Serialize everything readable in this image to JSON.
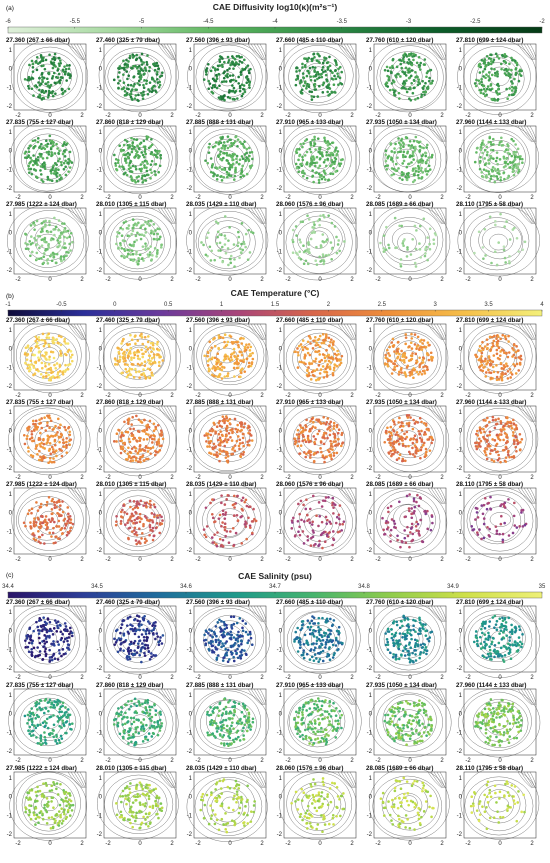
{
  "colors": {
    "diffusivity": [
      "#dff0da",
      "#a6d9a0",
      "#5cb55e",
      "#2e8b46",
      "#0d5e2a",
      "#063a16"
    ],
    "temperature": [
      "#0f0c3a",
      "#2b2f9a",
      "#6a3a9c",
      "#a8447a",
      "#d8664a",
      "#ef8f3a",
      "#f6c04a",
      "#f4f07a"
    ],
    "salinity": [
      "#2a1468",
      "#2c3f98",
      "#1f6e9c",
      "#1f9a8a",
      "#47b46e",
      "#8fcc4c",
      "#cfe04a",
      "#eef078"
    ]
  },
  "chart_data": [
    {
      "type": "scatter",
      "panel_letter": "(a)",
      "title": "CAE Diffusivity log10(κ)(m²s⁻¹)",
      "colorbar": {
        "min": -6,
        "max": -2,
        "ticks": [
          "-6",
          "-5.5",
          "-5",
          "-4.5",
          "-4",
          "-3.5",
          "-3",
          "-2.5",
          "-2"
        ]
      },
      "xlim": [
        -2,
        2
      ],
      "ylim": [
        -2,
        1.5
      ],
      "xticks": [
        "-2",
        "0",
        "2"
      ],
      "yticks": [
        "1",
        "0",
        "-1",
        "-2"
      ],
      "subplots": [
        {
          "label": "27.360 (267 ± 66 dbar)",
          "value": -3.6,
          "n": 150
        },
        {
          "label": "27.460 (325 ± 79 dbar)",
          "value": -3.6,
          "n": 150
        },
        {
          "label": "27.560 (396 ± 93 dbar)",
          "value": -3.5,
          "n": 150
        },
        {
          "label": "27.660 (485 ± 110 dbar)",
          "value": -3.7,
          "n": 150
        },
        {
          "label": "27.760 (610 ± 120 dbar)",
          "value": -3.9,
          "n": 150
        },
        {
          "label": "27.810 (699 ± 124 dbar)",
          "value": -4.0,
          "n": 150
        },
        {
          "label": "27.835 (755 ± 127 dbar)",
          "value": -4.1,
          "n": 150
        },
        {
          "label": "27.860 (818 ± 129 dbar)",
          "value": -4.2,
          "n": 150
        },
        {
          "label": "27.885 (888 ± 131 dbar)",
          "value": -4.3,
          "n": 150
        },
        {
          "label": "27.910 (965 ± 133 dbar)",
          "value": -4.4,
          "n": 150
        },
        {
          "label": "27.935 (1050 ± 134 dbar)",
          "value": -4.5,
          "n": 150
        },
        {
          "label": "27.960 (1144 ± 133 dbar)",
          "value": -4.6,
          "n": 150
        },
        {
          "label": "27.985 (1222 ± 124 dbar)",
          "value": -4.8,
          "n": 130
        },
        {
          "label": "28.010 (1305 ± 115 dbar)",
          "value": -4.8,
          "n": 120
        },
        {
          "label": "28.035 (1429 ± 110 dbar)",
          "value": -4.9,
          "n": 60
        },
        {
          "label": "28.060 (1576 ± 96 dbar)",
          "value": -5.0,
          "n": 80
        },
        {
          "label": "28.085 (1689 ± 66 dbar)",
          "value": -5.1,
          "n": 50
        },
        {
          "label": "28.110 (1795 ± 58 dbar)",
          "value": -5.2,
          "n": 30
        }
      ]
    },
    {
      "type": "scatter",
      "panel_letter": "(b)",
      "title": "CAE Temperature (°C)",
      "colorbar": {
        "min": -1,
        "max": 4,
        "ticks": [
          "-1",
          "-0.5",
          "0",
          "0.5",
          "1",
          "1.5",
          "2",
          "2.5",
          "3",
          "3.5",
          "4"
        ]
      },
      "xlim": [
        -2,
        2
      ],
      "ylim": [
        -2,
        1.5
      ],
      "xticks": [
        "-2",
        "0",
        "2"
      ],
      "yticks": [
        "1",
        "0",
        "-1",
        "-2"
      ],
      "subplots": [
        {
          "label": "27.360 (267 ± 66 dbar)",
          "value": 3.5,
          "n": 150
        },
        {
          "label": "27.460 (325 ± 79 dbar)",
          "value": 3.3,
          "n": 150
        },
        {
          "label": "27.560 (396 ± 93 dbar)",
          "value": 3.0,
          "n": 150
        },
        {
          "label": "27.660 (485 ± 110 dbar)",
          "value": 2.7,
          "n": 150
        },
        {
          "label": "27.760 (610 ± 120 dbar)",
          "value": 2.6,
          "n": 150
        },
        {
          "label": "27.810 (699 ± 124 dbar)",
          "value": 2.5,
          "n": 150
        },
        {
          "label": "27.835 (755 ± 127 dbar)",
          "value": 2.4,
          "n": 150
        },
        {
          "label": "27.860 (818 ± 129 dbar)",
          "value": 2.35,
          "n": 150
        },
        {
          "label": "27.885 (888 ± 131 dbar)",
          "value": 2.3,
          "n": 150
        },
        {
          "label": "27.910 (965 ± 133 dbar)",
          "value": 2.25,
          "n": 150
        },
        {
          "label": "27.935 (1050 ± 134 dbar)",
          "value": 2.2,
          "n": 150
        },
        {
          "label": "27.960 (1144 ± 133 dbar)",
          "value": 2.15,
          "n": 150
        },
        {
          "label": "27.985 (1222 ± 124 dbar)",
          "value": 2.0,
          "n": 130
        },
        {
          "label": "28.010 (1305 ± 115 dbar)",
          "value": 1.8,
          "n": 120
        },
        {
          "label": "28.035 (1429 ± 110 dbar)",
          "value": 1.6,
          "n": 90
        },
        {
          "label": "28.060 (1576 ± 96 dbar)",
          "value": 1.3,
          "n": 90
        },
        {
          "label": "28.085 (1689 ± 66 dbar)",
          "value": 1.1,
          "n": 80
        },
        {
          "label": "28.110 (1795 ± 58 dbar)",
          "value": 1.0,
          "n": 60
        }
      ]
    },
    {
      "type": "scatter",
      "panel_letter": "(c)",
      "title": "CAE Salinity (psu)",
      "colorbar": {
        "min": 34.4,
        "max": 35,
        "ticks": [
          "34.4",
          "34.5",
          "34.6",
          "34.7",
          "34.8",
          "34.9",
          "35"
        ]
      },
      "xlim": [
        -2,
        2
      ],
      "ylim": [
        -2,
        1.5
      ],
      "xticks": [
        "-2",
        "0",
        "2"
      ],
      "yticks": [
        "1",
        "0",
        "-1",
        "-2"
      ],
      "subplots": [
        {
          "label": "27.360 (267 ± 66 dbar)",
          "value": 34.45,
          "n": 150
        },
        {
          "label": "27.460 (325 ± 79 dbar)",
          "value": 34.47,
          "n": 150
        },
        {
          "label": "27.560 (396 ± 93 dbar)",
          "value": 34.52,
          "n": 150
        },
        {
          "label": "27.660 (485 ± 110 dbar)",
          "value": 34.58,
          "n": 150
        },
        {
          "label": "27.760 (610 ± 120 dbar)",
          "value": 34.63,
          "n": 150
        },
        {
          "label": "27.810 (699 ± 124 dbar)",
          "value": 34.66,
          "n": 150
        },
        {
          "label": "27.835 (755 ± 127 dbar)",
          "value": 34.7,
          "n": 150
        },
        {
          "label": "27.860 (818 ± 129 dbar)",
          "value": 34.72,
          "n": 150
        },
        {
          "label": "27.885 (888 ± 131 dbar)",
          "value": 34.75,
          "n": 150
        },
        {
          "label": "27.910 (965 ± 133 dbar)",
          "value": 34.77,
          "n": 150
        },
        {
          "label": "27.935 (1050 ± 134 dbar)",
          "value": 34.79,
          "n": 150
        },
        {
          "label": "27.960 (1144 ± 133 dbar)",
          "value": 34.81,
          "n": 150
        },
        {
          "label": "27.985 (1222 ± 124 dbar)",
          "value": 34.84,
          "n": 130
        },
        {
          "label": "28.010 (1305 ± 115 dbar)",
          "value": 34.86,
          "n": 120
        },
        {
          "label": "28.035 (1429 ± 110 dbar)",
          "value": 34.87,
          "n": 90
        },
        {
          "label": "28.060 (1576 ± 96 dbar)",
          "value": 34.88,
          "n": 90
        },
        {
          "label": "28.085 (1689 ± 66 dbar)",
          "value": 34.89,
          "n": 80
        },
        {
          "label": "28.110 (1795 ± 58 dbar)",
          "value": 34.9,
          "n": 60
        }
      ]
    }
  ]
}
